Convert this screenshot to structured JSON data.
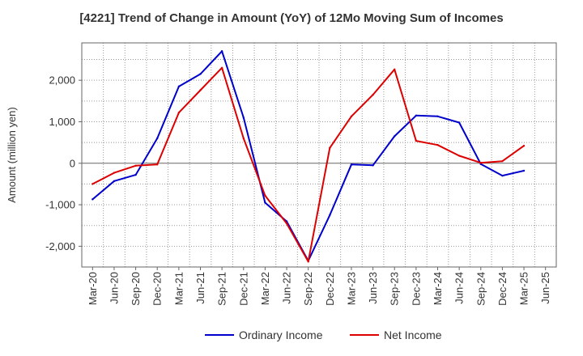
{
  "chart_data": {
    "type": "line",
    "title": "[4221]  Trend of Change in Amount (YoY) of 12Mo Moving Sum of Incomes",
    "ylabel": "Amount (million yen)",
    "xlabel": "",
    "ylim": [
      -2500,
      2900
    ],
    "yticks": [
      -2000,
      -1000,
      0,
      1000,
      2000
    ],
    "ytick_labels": [
      "-2,000",
      "-1,000",
      "0",
      "1,000",
      "2,000"
    ],
    "x_tick_labels": [
      "Mar-20",
      "Jun-20",
      "Sep-20",
      "Dec-20",
      "Mar-21",
      "Jun-21",
      "Sep-21",
      "Dec-21",
      "Mar-22",
      "Jun-22",
      "Sep-22",
      "Dec-22",
      "Mar-23",
      "Jun-23",
      "Sep-23",
      "Dec-23",
      "Mar-24",
      "Jun-24",
      "Sep-24",
      "Dec-24",
      "Mar-25",
      "Jun-25"
    ],
    "grid": true,
    "legend_position": "bottom",
    "series": [
      {
        "name": "Ordinary Income",
        "color": "#0000cc",
        "values": [
          -870,
          -430,
          -280,
          600,
          1850,
          2150,
          2700,
          1100,
          -950,
          -1400,
          -2350,
          -1250,
          -30,
          -50,
          650,
          1150,
          1130,
          980,
          -20,
          -300,
          -180
        ]
      },
      {
        "name": "Net Income",
        "color": "#dd0000",
        "values": [
          -500,
          -230,
          -60,
          -30,
          1220,
          1760,
          2300,
          600,
          -780,
          -1450,
          -2370,
          370,
          1130,
          1650,
          2260,
          540,
          440,
          180,
          10,
          50,
          420
        ]
      }
    ]
  }
}
